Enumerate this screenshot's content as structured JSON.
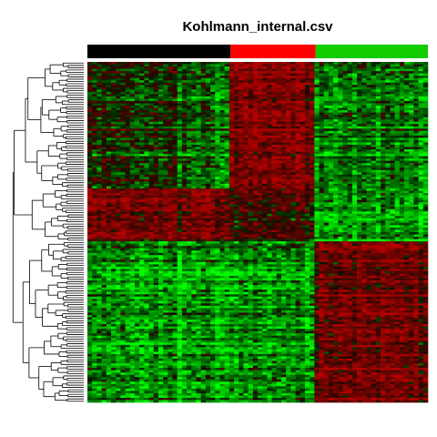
{
  "chart_data": {
    "type": "heatmap",
    "title": "Kohlmann_internal.csv",
    "column_groups": [
      {
        "color": "#000000",
        "share": 0.42
      },
      {
        "color": "#ff0000",
        "share": 0.25
      },
      {
        "color": "#11cc00",
        "share": 0.33
      }
    ],
    "row_blocks": [
      {
        "share": 0.37,
        "levels": [
          -0.2,
          1.1,
          -0.6
        ]
      },
      {
        "share": 0.16,
        "levels": [
          0.8,
          0.4,
          -0.9
        ]
      },
      {
        "share": 0.47,
        "levels": [
          -0.9,
          -0.7,
          0.9
        ]
      }
    ],
    "color_scale": {
      "low": "#00ff00",
      "mid": "#000000",
      "high": "#b00000"
    },
    "dendrogram": "left"
  }
}
